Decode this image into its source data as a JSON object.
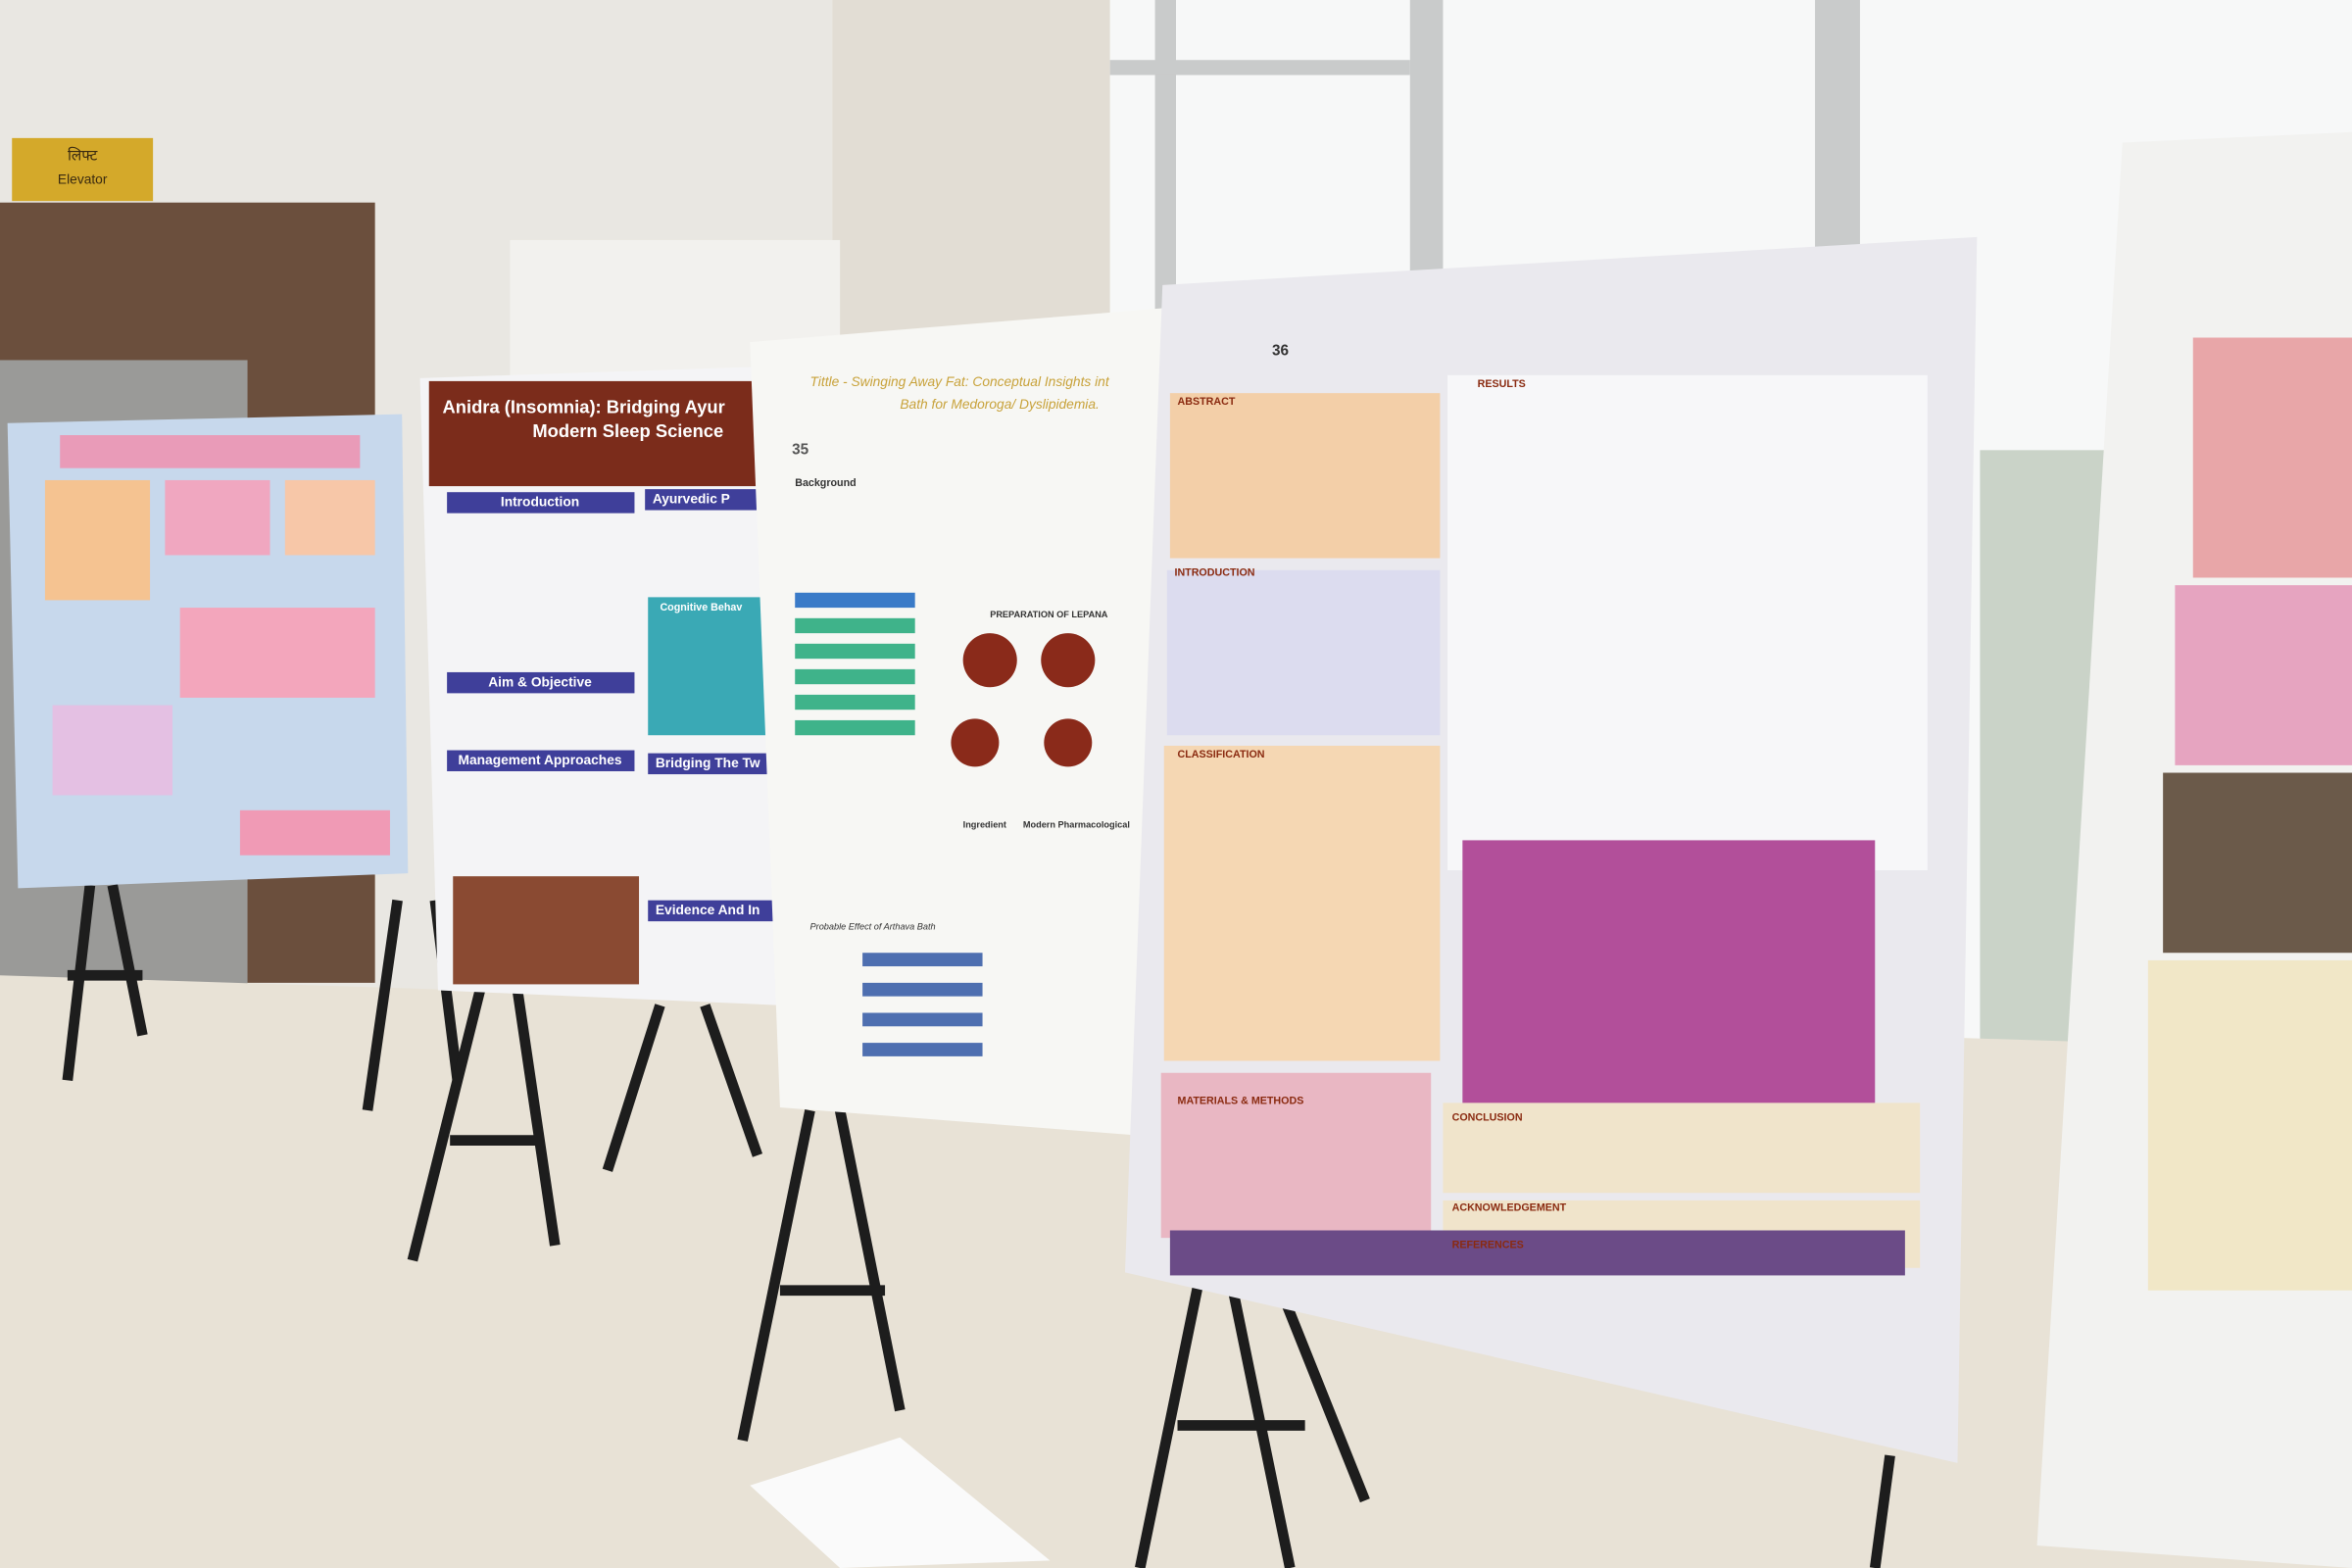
{
  "sign": {
    "hindi": "लिफ्ट",
    "english": "Elevator"
  },
  "posters": [
    {
      "title_line1": "Anidra (Insomnia): Bridging Ayur",
      "title_line2": "Modern Sleep Science",
      "sections": [
        "Introduction",
        "Ayurvedic P",
        "Aim & Objective",
        "Cognitive Behav",
        "Management Approaches",
        "Bridging The Tw",
        "Evidence And In"
      ]
    },
    {
      "number": "35",
      "title_line1": "Tittle - Swinging Away Fat: Conceptual Insights int",
      "title_line2": "Bath for Medoroga/ Dyslipidemia.",
      "sections": [
        "Background",
        "PREPARATION OF LEPANA",
        "Ingredient",
        "Modern Pharmacological",
        "Probable Effect of Arthava Bath"
      ]
    },
    {
      "number": "36",
      "sections": [
        "ABSTRACT",
        "RESULTS",
        "INTRODUCTION",
        "CLASSIFICATION",
        "MATERIALS & METHODS",
        "CONCLUSION",
        "ACKNOWLEDGEMENT",
        "REFERENCES"
      ]
    }
  ]
}
